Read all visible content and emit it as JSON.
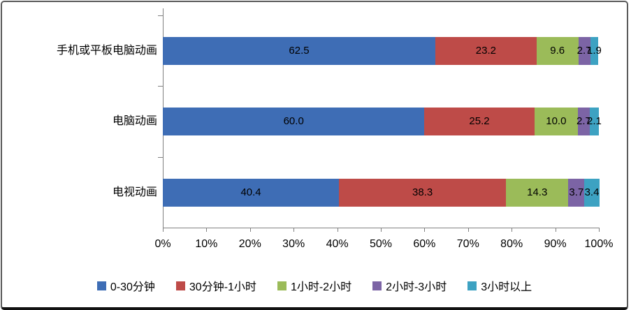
{
  "chart_data": {
    "type": "bar",
    "orientation": "horizontal-stacked",
    "title": "",
    "categories": [
      "手机或平板电脑动画",
      "电脑动画",
      "电视动画"
    ],
    "series": [
      {
        "name": "0-30分钟",
        "color": "#3E6DB5",
        "values": [
          62.5,
          60.0,
          40.4
        ]
      },
      {
        "name": "30分钟-1小时",
        "color": "#BE4B48",
        "values": [
          23.2,
          25.2,
          38.3
        ]
      },
      {
        "name": "1小时-2小时",
        "color": "#9BBB59",
        "values": [
          9.6,
          10.0,
          14.3
        ]
      },
      {
        "name": "2小时-3小时",
        "color": "#7C64A5",
        "values": [
          2.7,
          2.7,
          3.7
        ]
      },
      {
        "name": "3小时以上",
        "color": "#3DA2C2",
        "values": [
          1.9,
          2.1,
          3.4
        ]
      }
    ],
    "x_ticks": [
      "0%",
      "10%",
      "20%",
      "30%",
      "40%",
      "50%",
      "60%",
      "70%",
      "80%",
      "90%",
      "100%"
    ],
    "xlim": [
      0,
      100
    ],
    "value_labels": "shown-one-decimal",
    "legend_position": "bottom",
    "grid": false,
    "axis_color": "#808080",
    "label_color": "#000000"
  }
}
